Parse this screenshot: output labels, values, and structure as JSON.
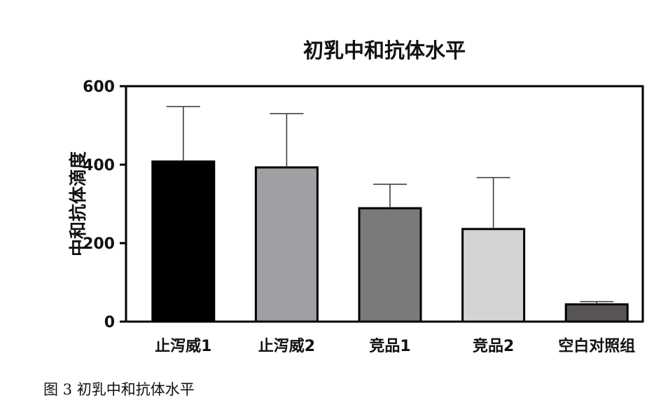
{
  "chart_data": {
    "type": "bar",
    "title": "初乳中和抗体水平",
    "xlabel": "",
    "ylabel": "中和抗体滴度",
    "categories": [
      "止泻威1",
      "止泻威2",
      "竞品1",
      "竞品2",
      "空白对照组"
    ],
    "values": [
      408,
      393,
      289,
      236,
      44
    ],
    "error_upper": [
      140,
      137,
      61,
      131,
      7
    ],
    "ylim": [
      0,
      600
    ],
    "yticks": [
      0,
      200,
      400,
      600
    ],
    "ytick_labels": [
      "0",
      "200",
      "400",
      "600"
    ],
    "bar_colors": [
      "#000000",
      "#a09fa3",
      "#7c797b",
      "#d6d4d3",
      "#575356"
    ],
    "grid": false,
    "legend": "none"
  },
  "caption": "图 3 初乳中和抗体水平"
}
